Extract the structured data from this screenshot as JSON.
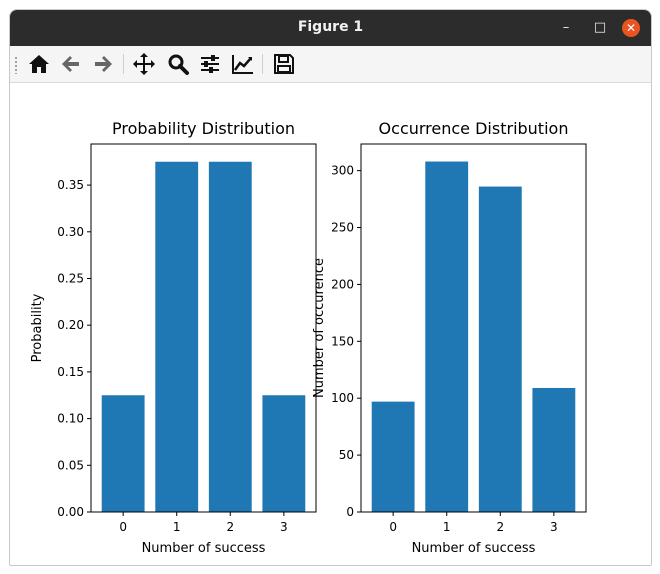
{
  "window": {
    "title": "Figure 1",
    "minimize_icon": "minimize-icon",
    "maximize_icon": "maximize-icon",
    "close_icon": "close-icon"
  },
  "toolbar": {
    "items": [
      {
        "name": "home-icon"
      },
      {
        "name": "back-icon"
      },
      {
        "name": "forward-icon"
      },
      {
        "name": "pan-icon"
      },
      {
        "name": "zoom-icon"
      },
      {
        "name": "configure-subplots-icon"
      },
      {
        "name": "edit-axis-icon"
      },
      {
        "name": "save-icon"
      }
    ]
  },
  "colors": {
    "bar": "#1f77b4",
    "titlebar": "#2c2c2c",
    "close_button": "#e95420"
  },
  "chart_data": [
    {
      "type": "bar",
      "title": "Probability Distribution",
      "xlabel": "Number of success",
      "ylabel": "Probability",
      "categories": [
        "0",
        "1",
        "2",
        "3"
      ],
      "values": [
        0.125,
        0.375,
        0.375,
        0.125
      ],
      "ylim": [
        0,
        0.394
      ],
      "yticks": [
        "0.00",
        "0.05",
        "0.10",
        "0.15",
        "0.20",
        "0.25",
        "0.30",
        "0.35"
      ],
      "ytick_values": [
        0,
        0.05,
        0.1,
        0.15,
        0.2,
        0.25,
        0.3,
        0.35
      ],
      "grid": false
    },
    {
      "type": "bar",
      "title": "Occurrence Distribution",
      "xlabel": "Number of success",
      "ylabel": "Number of occurence",
      "categories": [
        "0",
        "1",
        "2",
        "3"
      ],
      "values": [
        97,
        308,
        286,
        109
      ],
      "ylim": [
        0,
        323.4
      ],
      "yticks": [
        "0",
        "50",
        "100",
        "150",
        "200",
        "250",
        "300"
      ],
      "ytick_values": [
        0,
        50,
        100,
        150,
        200,
        250,
        300
      ],
      "grid": false
    }
  ]
}
